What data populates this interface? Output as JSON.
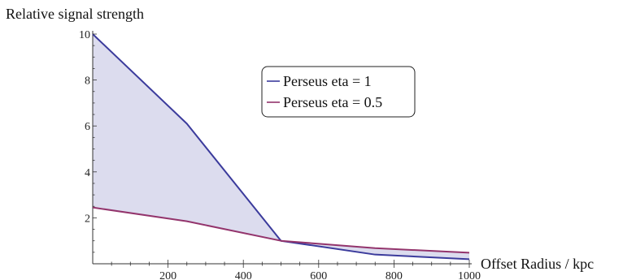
{
  "chart_data": {
    "type": "area",
    "ylabel": "Relative signal strength",
    "xlabel": "Offset Radius / kpc",
    "xlim": [
      0,
      1000
    ],
    "ylim": [
      0,
      10
    ],
    "x_ticks_major": [
      200,
      400,
      600,
      800,
      1000
    ],
    "y_ticks_major": [
      2,
      4,
      6,
      8,
      10
    ],
    "grid": false,
    "legend_placement": "top-center",
    "fill_between_series": true,
    "fill_color": "#dcdcee",
    "series": [
      {
        "name": "Perseus eta = 1",
        "color": "#3b3b9c",
        "x": [
          0,
          250,
          500,
          750,
          1000
        ],
        "y": [
          10.0,
          6.1,
          1.0,
          0.4,
          0.2
        ]
      },
      {
        "name": "Perseus eta = 0.5",
        "color": "#93346c",
        "x": [
          0,
          250,
          500,
          750,
          1000
        ],
        "y": [
          2.45,
          1.85,
          1.0,
          0.68,
          0.48
        ]
      }
    ]
  }
}
